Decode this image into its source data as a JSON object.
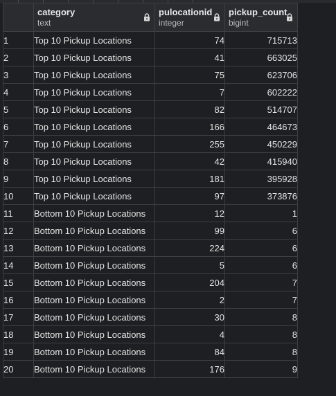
{
  "columns": [
    {
      "name": "category",
      "type": "text"
    },
    {
      "name": "pulocationid",
      "type": "integer"
    },
    {
      "name": "pickup_count",
      "type": "bigint"
    }
  ],
  "lock_icon": "lock-icon",
  "rows": [
    {
      "n": "1",
      "category": "Top 10 Pickup Locations",
      "pulocationid": "74",
      "pickup_count": "715713"
    },
    {
      "n": "2",
      "category": "Top 10 Pickup Locations",
      "pulocationid": "41",
      "pickup_count": "663025"
    },
    {
      "n": "3",
      "category": "Top 10 Pickup Locations",
      "pulocationid": "75",
      "pickup_count": "623706"
    },
    {
      "n": "4",
      "category": "Top 10 Pickup Locations",
      "pulocationid": "7",
      "pickup_count": "602222"
    },
    {
      "n": "5",
      "category": "Top 10 Pickup Locations",
      "pulocationid": "82",
      "pickup_count": "514707"
    },
    {
      "n": "6",
      "category": "Top 10 Pickup Locations",
      "pulocationid": "166",
      "pickup_count": "464673"
    },
    {
      "n": "7",
      "category": "Top 10 Pickup Locations",
      "pulocationid": "255",
      "pickup_count": "450229"
    },
    {
      "n": "8",
      "category": "Top 10 Pickup Locations",
      "pulocationid": "42",
      "pickup_count": "415940"
    },
    {
      "n": "9",
      "category": "Top 10 Pickup Locations",
      "pulocationid": "181",
      "pickup_count": "395928"
    },
    {
      "n": "10",
      "category": "Top 10 Pickup Locations",
      "pulocationid": "97",
      "pickup_count": "373876"
    },
    {
      "n": "11",
      "category": "Bottom 10 Pickup Locations",
      "pulocationid": "12",
      "pickup_count": "1"
    },
    {
      "n": "12",
      "category": "Bottom 10 Pickup Locations",
      "pulocationid": "99",
      "pickup_count": "6"
    },
    {
      "n": "13",
      "category": "Bottom 10 Pickup Locations",
      "pulocationid": "224",
      "pickup_count": "6"
    },
    {
      "n": "14",
      "category": "Bottom 10 Pickup Locations",
      "pulocationid": "5",
      "pickup_count": "6"
    },
    {
      "n": "15",
      "category": "Bottom 10 Pickup Locations",
      "pulocationid": "204",
      "pickup_count": "7"
    },
    {
      "n": "16",
      "category": "Bottom 10 Pickup Locations",
      "pulocationid": "2",
      "pickup_count": "7"
    },
    {
      "n": "17",
      "category": "Bottom 10 Pickup Locations",
      "pulocationid": "30",
      "pickup_count": "8"
    },
    {
      "n": "18",
      "category": "Bottom 10 Pickup Locations",
      "pulocationid": "4",
      "pickup_count": "8"
    },
    {
      "n": "19",
      "category": "Bottom 10 Pickup Locations",
      "pulocationid": "84",
      "pickup_count": "8"
    },
    {
      "n": "20",
      "category": "Bottom 10 Pickup Locations",
      "pulocationid": "176",
      "pickup_count": "9"
    }
  ]
}
